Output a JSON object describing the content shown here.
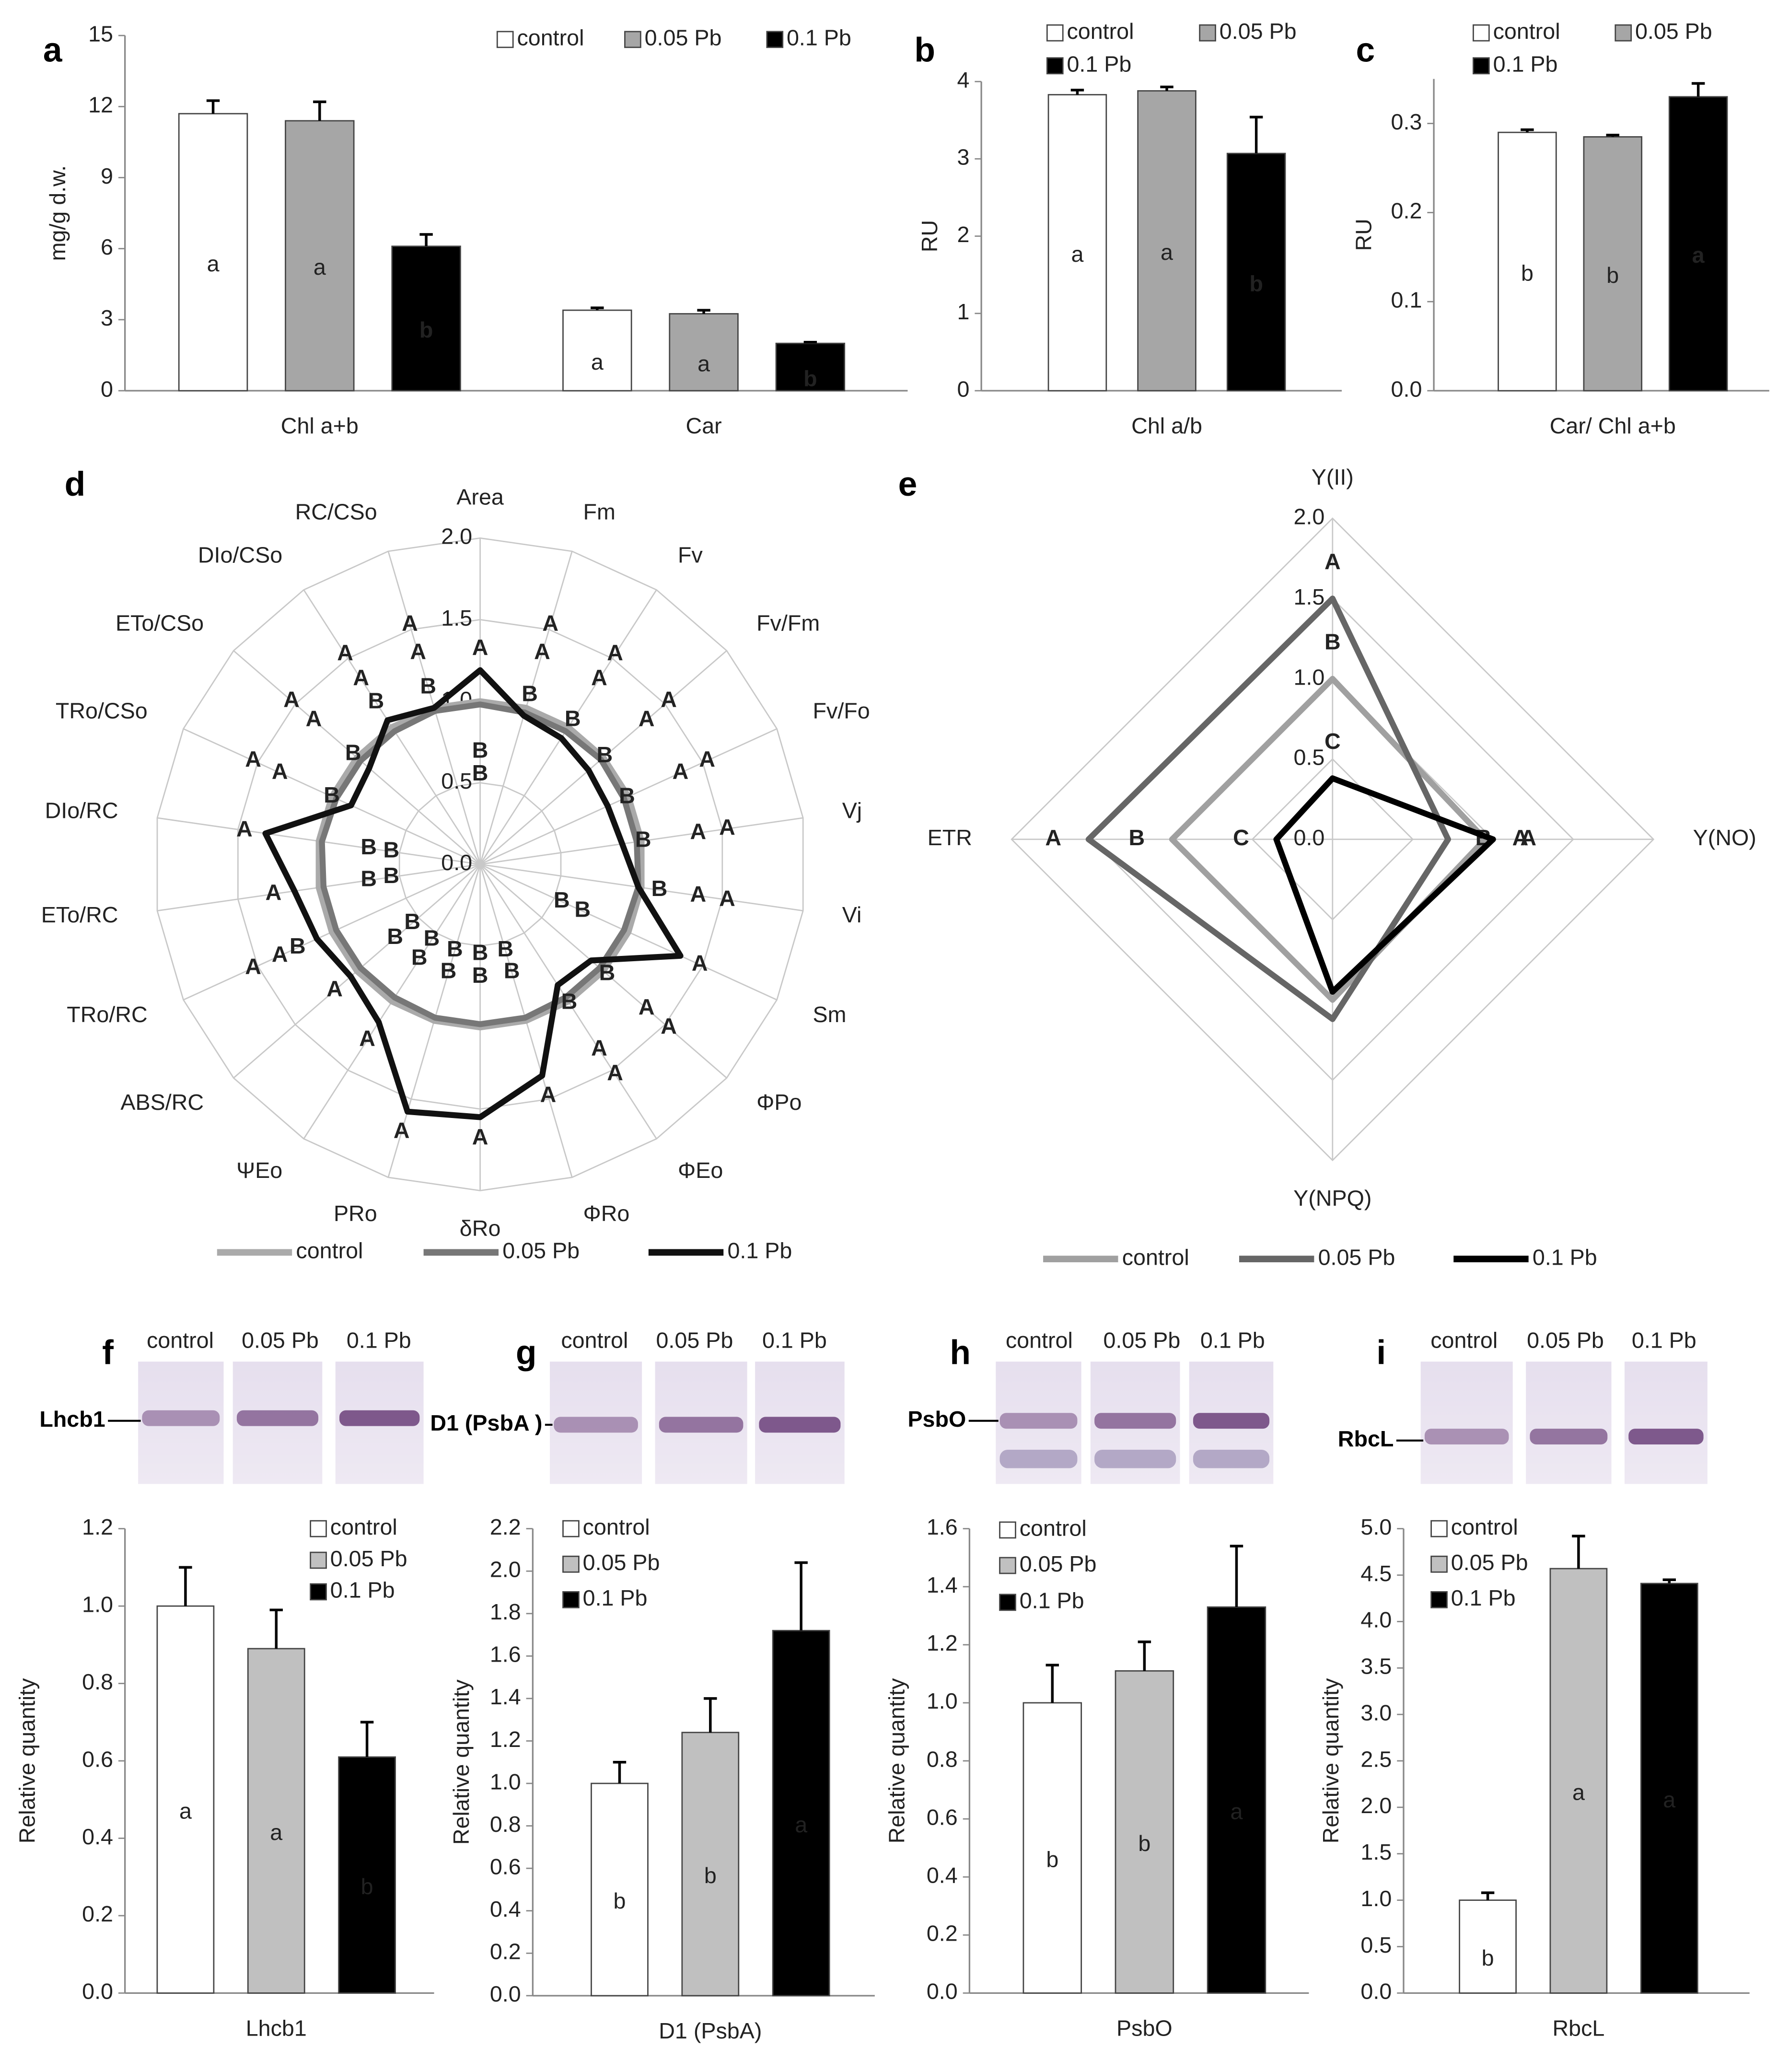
{
  "chart_data": [
    {
      "type": "bar",
      "panel": "a",
      "ylabel": "mg/g d.w.",
      "categories": [
        "Chl a+b",
        "Car"
      ],
      "ylim": [
        0,
        15
      ],
      "yticks": [
        0,
        3,
        6,
        9,
        12,
        15
      ],
      "series": [
        {
          "name": "control",
          "color": "#ffffff",
          "values": [
            11.7,
            3.4
          ],
          "errors": [
            0.55,
            0.1
          ],
          "letters": [
            "a",
            "a"
          ]
        },
        {
          "name": "0.05 Pb",
          "color": "#a6a6a6",
          "values": [
            11.4,
            3.25
          ],
          "errors": [
            0.8,
            0.15
          ],
          "letters": [
            "a",
            "a"
          ]
        },
        {
          "name": "0.1 Pb",
          "color": "#000000",
          "values": [
            6.1,
            2.0
          ],
          "errors": [
            0.5,
            0.05
          ],
          "letters": [
            "b",
            "b"
          ]
        }
      ]
    },
    {
      "type": "bar",
      "panel": "b",
      "ylabel": "RU",
      "categories": [
        "Chl a/b"
      ],
      "ylim": [
        0,
        4
      ],
      "yticks": [
        0,
        1,
        2,
        3,
        4
      ],
      "series": [
        {
          "name": "control",
          "color": "#ffffff",
          "values": [
            3.83
          ],
          "errors": [
            0.06
          ],
          "letters": [
            "a"
          ]
        },
        {
          "name": "0.05 Pb",
          "color": "#a6a6a6",
          "values": [
            3.88
          ],
          "errors": [
            0.05
          ],
          "letters": [
            "a"
          ]
        },
        {
          "name": "0.1 Pb",
          "color": "#000000",
          "values": [
            3.07
          ],
          "errors": [
            0.47
          ],
          "letters": [
            "b"
          ]
        }
      ]
    },
    {
      "type": "bar",
      "panel": "c",
      "ylabel": "RU",
      "categories": [
        "Car/ Chl a+b"
      ],
      "ylim": [
        0,
        0.35
      ],
      "yticks": [
        {
          "value": 0,
          "label": "0.0"
        },
        0.1,
        0.2,
        0.3
      ],
      "series": [
        {
          "name": "control",
          "color": "#ffffff",
          "values": [
            0.29
          ],
          "errors": [
            0.003
          ],
          "letters": [
            "b"
          ]
        },
        {
          "name": "0.05 Pb",
          "color": "#a6a6a6",
          "values": [
            0.285
          ],
          "errors": [
            0.002
          ],
          "letters": [
            "b"
          ]
        },
        {
          "name": "0.1 Pb",
          "color": "#000000",
          "values": [
            0.33
          ],
          "errors": [
            0.015
          ],
          "letters": [
            "a"
          ]
        }
      ]
    },
    {
      "type": "radar",
      "panel": "d",
      "axes": [
        "Area",
        "Fm",
        "Fv",
        "Fv/Fm",
        "Fv/Fo",
        "Vj",
        "Vi",
        "Sm",
        "ΦPo",
        "ΦEo",
        "ΦRo",
        "δRo",
        "PRo",
        "ΨEo",
        "ABS/RC",
        "TRo/RC",
        "ETo/RC",
        "DIo/RC",
        "TRo/CSo",
        "ETo/CSo",
        "DIo/CSo",
        "RC/CSo"
      ],
      "rlim": [
        0,
        2
      ],
      "rticks": [
        {
          "value": 0,
          "label": "0.0"
        },
        0.5,
        {
          "value": 1,
          "label": "1.0"
        },
        1.5,
        {
          "value": 2,
          "label": "2.0"
        }
      ],
      "series": [
        {
          "name": "control",
          "color": "#aaaaaa",
          "values": [
            1,
            1,
            1,
            1,
            1,
            1,
            1,
            1,
            1,
            1,
            1,
            1,
            1,
            1,
            1,
            1,
            1,
            1,
            1,
            1,
            1,
            1
          ],
          "letters": [
            "B",
            "A",
            "A",
            "A",
            "A",
            "A",
            "A",
            "B",
            "A",
            "A",
            "B",
            "B",
            "B",
            "B",
            "B",
            "A",
            "B",
            "B",
            "A",
            "A",
            "A",
            "A"
          ]
        },
        {
          "name": "0.05 Pb",
          "color": "#777777",
          "values": [
            0.98,
            0.97,
            0.97,
            0.98,
            0.97,
            0.97,
            0.98,
            0.97,
            0.97,
            0.97,
            0.98,
            0.98,
            0.98,
            0.97,
            0.97,
            0.97,
            0.97,
            0.98,
            0.97,
            0.97,
            0.97,
            0.98
          ],
          "letters": [
            "B",
            "A",
            "A",
            "A",
            "A",
            "A",
            "A",
            "B",
            "A",
            "A",
            "B",
            "B",
            "B",
            "B",
            "B",
            "A",
            "B",
            "B",
            "A",
            "A",
            "A",
            "A"
          ]
        },
        {
          "name": "0.1 Pb",
          "color": "#111111",
          "values": [
            1.19,
            0.95,
            0.92,
            0.88,
            0.86,
            0.88,
            0.98,
            1.35,
            0.9,
            0.88,
            1.35,
            1.55,
            1.58,
            1.15,
            1.05,
            1.1,
            1.15,
            1.33,
            0.87,
            0.9,
            1.05,
            1.0
          ],
          "letters": [
            "A",
            "B",
            "B",
            "B",
            "B",
            "B",
            "B",
            "A",
            "B",
            "B",
            "A",
            "A",
            "A",
            "A",
            "A",
            "B",
            "A",
            "A",
            "B",
            "B",
            "B",
            "B"
          ]
        }
      ]
    },
    {
      "type": "radar",
      "panel": "e",
      "axes": [
        "Y(II)",
        "Y(NO)",
        "Y(NPQ)",
        "ETR"
      ],
      "rlim": [
        0,
        2
      ],
      "rticks": [
        {
          "value": 0,
          "label": "0.0"
        },
        0.5,
        {
          "value": 1,
          "label": "1.0"
        },
        1.5,
        {
          "value": 2,
          "label": "2.0"
        }
      ],
      "series": [
        {
          "name": "control",
          "color": "#a0a0a0",
          "values": [
            1.0,
            0.95,
            1.0,
            1.0
          ],
          "letters": [
            "B",
            "A",
            null,
            "B"
          ]
        },
        {
          "name": "0.05 Pb",
          "color": "#666666",
          "values": [
            1.5,
            0.72,
            1.12,
            1.52
          ],
          "letters": [
            "A",
            "B",
            null,
            "A"
          ]
        },
        {
          "name": "0.1 Pb",
          "color": "#000000",
          "values": [
            0.38,
            1.0,
            0.95,
            0.35
          ],
          "letters": [
            "C",
            "A",
            null,
            "C"
          ]
        }
      ]
    },
    {
      "type": "bar",
      "panel": "f",
      "ylabel": "Relative quantity",
      "categories": [
        "Lhcb1"
      ],
      "blot": {
        "band": "Lhcb1",
        "lanes": [
          "control",
          "0.05 Pb",
          "0.1 Pb"
        ]
      },
      "ylim": [
        0,
        1.2
      ],
      "yticks": [
        {
          "value": 0,
          "label": "0.0"
        },
        0.2,
        0.4,
        0.6,
        0.8,
        {
          "value": 1,
          "label": "1.0"
        },
        1.2
      ],
      "series": [
        {
          "name": "control",
          "color": "#ffffff",
          "values": [
            1.0
          ],
          "errors": [
            0.1
          ],
          "letters": [
            "a"
          ]
        },
        {
          "name": "0.05 Pb",
          "color": "#c0c0c0",
          "values": [
            0.89
          ],
          "errors": [
            0.1
          ],
          "letters": [
            "a"
          ]
        },
        {
          "name": "0.1 Pb",
          "color": "#000000",
          "values": [
            0.61
          ],
          "errors": [
            0.09
          ],
          "letters": [
            "b"
          ]
        }
      ]
    },
    {
      "type": "bar",
      "panel": "g",
      "ylabel": "Relative quantity",
      "categories": [
        "D1 (PsbA)"
      ],
      "blot": {
        "band": "D1 (PsbA )",
        "lanes": [
          "control",
          "0.05 Pb",
          "0.1 Pb"
        ]
      },
      "ylim": [
        0,
        2.2
      ],
      "yticks": [
        {
          "value": 0,
          "label": "0.0"
        },
        0.2,
        0.4,
        0.6,
        0.8,
        {
          "value": 1,
          "label": "1.0"
        },
        1.2,
        1.4,
        1.6,
        1.8,
        {
          "value": 2,
          "label": "2.0"
        },
        2.2
      ],
      "series": [
        {
          "name": "control",
          "color": "#ffffff",
          "values": [
            1.0
          ],
          "errors": [
            0.1
          ],
          "letters": [
            "b"
          ]
        },
        {
          "name": "0.05 Pb",
          "color": "#c0c0c0",
          "values": [
            1.24
          ],
          "errors": [
            0.16
          ],
          "letters": [
            "b"
          ]
        },
        {
          "name": "0.1 Pb",
          "color": "#000000",
          "values": [
            1.72
          ],
          "errors": [
            0.32
          ],
          "letters": [
            "a"
          ]
        }
      ]
    },
    {
      "type": "bar",
      "panel": "h",
      "ylabel": "Relative quantity",
      "categories": [
        "PsbO"
      ],
      "blot": {
        "band": "PsbO",
        "lanes": [
          "control",
          "0.05 Pb",
          "0.1 Pb"
        ]
      },
      "ylim": [
        0,
        1.6
      ],
      "yticks": [
        {
          "value": 0,
          "label": "0.0"
        },
        0.2,
        0.4,
        0.6,
        0.8,
        {
          "value": 1,
          "label": "1.0"
        },
        1.2,
        1.4,
        1.6
      ],
      "series": [
        {
          "name": "control",
          "color": "#ffffff",
          "values": [
            1.0
          ],
          "errors": [
            0.13
          ],
          "letters": [
            "b"
          ]
        },
        {
          "name": "0.05 Pb",
          "color": "#c0c0c0",
          "values": [
            1.11
          ],
          "errors": [
            0.1
          ],
          "letters": [
            "b"
          ]
        },
        {
          "name": "0.1 Pb",
          "color": "#000000",
          "values": [
            1.33
          ],
          "errors": [
            0.21
          ],
          "letters": [
            "a"
          ]
        }
      ]
    },
    {
      "type": "bar",
      "panel": "i",
      "ylabel": "Relative quantity",
      "categories": [
        "RbcL"
      ],
      "blot": {
        "band": "RbcL",
        "lanes": [
          "control",
          "0.05 Pb",
          "0.1 Pb"
        ]
      },
      "ylim": [
        0,
        5
      ],
      "yticks": [
        {
          "value": 0,
          "label": "0.0"
        },
        0.5,
        {
          "value": 1,
          "label": "1.0"
        },
        1.5,
        {
          "value": 2,
          "label": "2.0"
        },
        2.5,
        {
          "value": 3,
          "label": "3.0"
        },
        3.5,
        {
          "value": 4,
          "label": "4.0"
        },
        4.5,
        {
          "value": 5,
          "label": "5.0"
        }
      ],
      "series": [
        {
          "name": "control",
          "color": "#ffffff",
          "values": [
            1.0
          ],
          "errors": [
            0.08
          ],
          "letters": [
            "b"
          ]
        },
        {
          "name": "0.05 Pb",
          "color": "#c0c0c0",
          "values": [
            4.57
          ],
          "errors": [
            0.35
          ],
          "letters": [
            "a"
          ]
        },
        {
          "name": "0.1 Pb",
          "color": "#000000",
          "values": [
            4.41
          ],
          "errors": [
            0.04
          ],
          "letters": [
            "a"
          ]
        }
      ]
    }
  ]
}
